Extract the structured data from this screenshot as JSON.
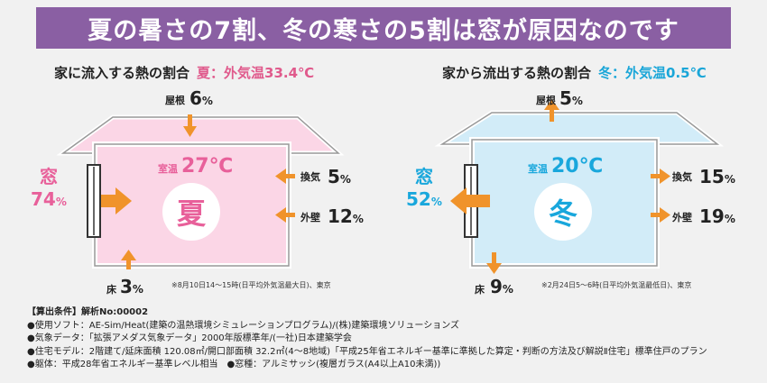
{
  "banner": {
    "title": "夏の暑さの7割、冬の寒さの5割は窓が原因なのです"
  },
  "summer": {
    "title": "家に流入する熱の割合",
    "subtitle": "夏：外気温33.4℃",
    "roof_label": "屋根",
    "roof_value": "6",
    "roof_unit": "%",
    "room_temp_label": "室温",
    "room_temp_value": "27℃",
    "season_char": "夏",
    "window_label": "窓",
    "window_value": "74",
    "window_unit": "%",
    "vent_label": "換気",
    "vent_value": "5",
    "vent_unit": "%",
    "wall_label": "外壁",
    "wall_value": "12",
    "wall_unit": "%",
    "floor_label": "床",
    "floor_value": "3",
    "floor_unit": "%",
    "note": "※8月10日14～15時(日平均外気温最大日)、東京",
    "accent": "#e8609a",
    "arrow": "#f0932b",
    "room_fill": "#fbd6e6"
  },
  "winter": {
    "title": "家から流出する熱の割合",
    "subtitle": "冬：外気温0.5℃",
    "roof_label": "屋根",
    "roof_value": "5",
    "roof_unit": "%",
    "room_temp_label": "室温",
    "room_temp_value": "20℃",
    "season_char": "冬",
    "window_label": "窓",
    "window_value": "52",
    "window_unit": "%",
    "vent_label": "換気",
    "vent_value": "15",
    "vent_unit": "%",
    "wall_label": "外壁",
    "wall_value": "19",
    "wall_unit": "%",
    "floor_label": "床",
    "floor_value": "9",
    "floor_unit": "%",
    "note": "※2月24日5～6時(日平均外気温最低日)、東京",
    "accent": "#19a7dc",
    "arrow": "#f0932b",
    "room_fill": "#d2ecf8"
  },
  "conditions": {
    "head": "【算出条件】解析No:00002",
    "lines": [
      "●使用ソフト：AE-Sim/Heat(建築の温熱環境シミュレーションプログラム)/(株)建築環境ソリューションズ",
      "●気象データ：「拡張アメダス気象データ」2000年版標準年/(一社)日本建築学会",
      "●住宅モデル：2階建て/延床面積 120.08㎡/開口部面積 32.2㎡(4～8地域)「平成25年省エネルギー基準に準拠した算定・判断の方法及び解説Ⅱ住宅」標準住戸のプラン",
      "●躯体：平成28年省エネルギー基準レベル相当　●窓種：アルミサッシ(複層ガラス(A4以上A10未満))"
    ]
  }
}
